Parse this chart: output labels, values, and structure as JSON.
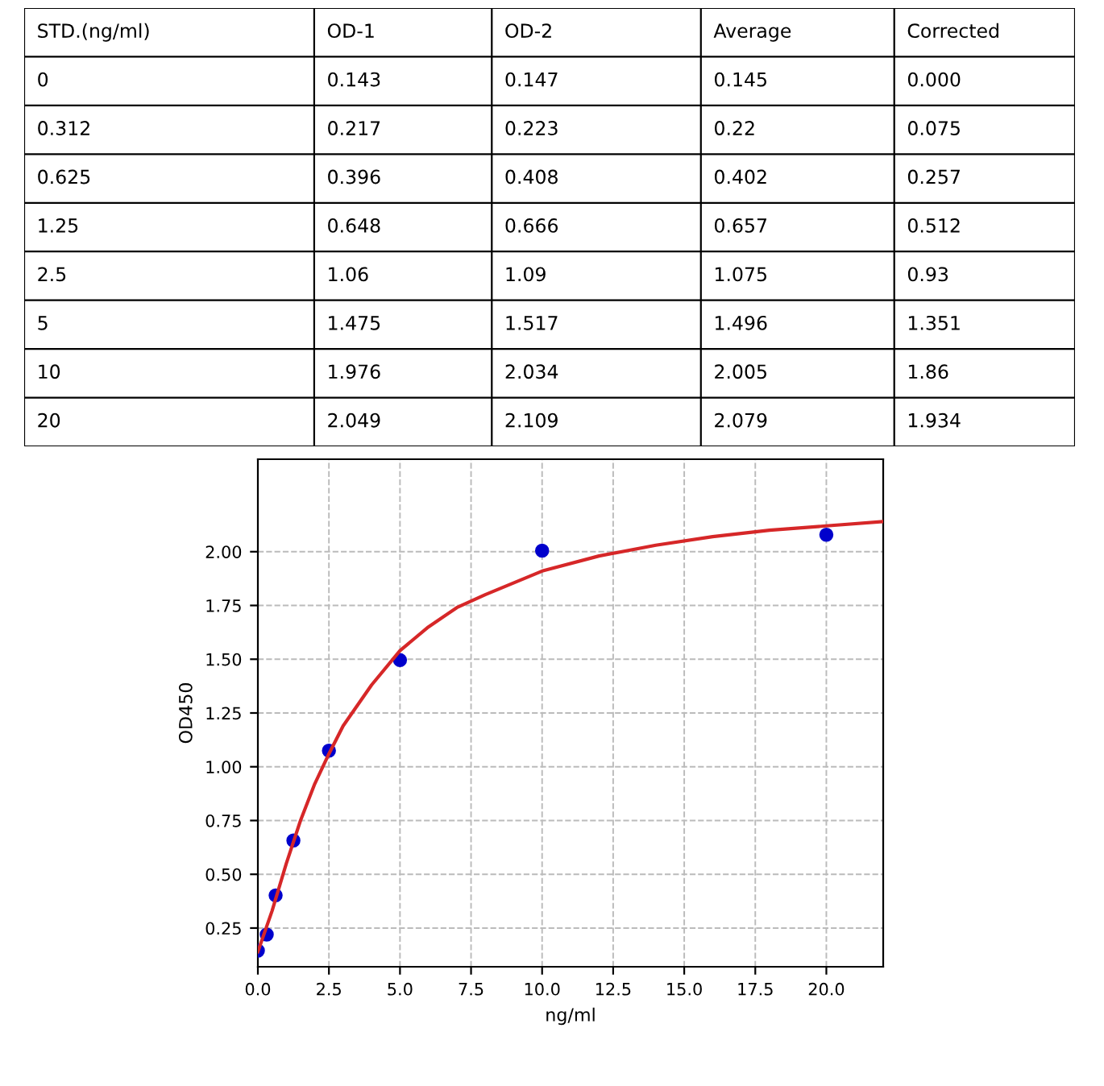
{
  "chart_data": [
    {
      "type": "other",
      "categories": [
        "STD.(ng/ml)",
        "OD-1",
        "OD-2",
        "Average",
        "Corrected"
      ],
      "cell_labels": [
        [
          "0",
          "0.143",
          "0.147",
          "0.145",
          "0.000"
        ],
        [
          "0.312",
          "0.217",
          "0.223",
          "0.22",
          "0.075"
        ],
        [
          "0.625",
          "0.396",
          "0.408",
          "0.402",
          "0.257"
        ],
        [
          "1.25",
          "0.648",
          "0.666",
          "0.657",
          "0.512"
        ],
        [
          "2.5",
          "1.06",
          "1.09",
          "1.075",
          "0.93"
        ],
        [
          "5",
          "1.475",
          "1.517",
          "1.496",
          "1.351"
        ],
        [
          "10",
          "1.976",
          "2.034",
          "2.005",
          "1.86"
        ],
        [
          "20",
          "2.049",
          "2.109",
          "2.079",
          "1.934"
        ]
      ]
    },
    {
      "type": "scatter",
      "xlabel": "ng/ml",
      "ylabel": "OD450",
      "series": [
        {
          "type": "scatter",
          "color": "#0000cc",
          "marker": "circle",
          "x": [
            0,
            0.312,
            0.625,
            1.25,
            2.5,
            5,
            10,
            20
          ],
          "values": [
            0.145,
            0.22,
            0.402,
            0.657,
            1.075,
            1.496,
            2.005,
            2.079
          ]
        },
        {
          "type": "line",
          "color": "#d62728",
          "marker": "none",
          "x": [
            0,
            0.5,
            1,
            1.5,
            2,
            2.5,
            3,
            4,
            5,
            6,
            7,
            8,
            10,
            12,
            14,
            16,
            18,
            20,
            22
          ],
          "values": [
            0.14,
            0.33,
            0.55,
            0.75,
            0.92,
            1.06,
            1.19,
            1.38,
            1.54,
            1.65,
            1.74,
            1.8,
            1.91,
            1.98,
            2.03,
            2.07,
            2.1,
            2.12,
            2.14
          ]
        }
      ],
      "xlim": [
        0,
        22
      ],
      "ylim": [
        0.07,
        2.43
      ],
      "xticks": [
        {
          "value": 0,
          "label": "0.0"
        },
        {
          "value": 2.5,
          "label": "2.5"
        },
        {
          "value": 5,
          "label": "5.0"
        },
        {
          "value": 7.5,
          "label": "7.5"
        },
        {
          "value": 10,
          "label": "10.0"
        },
        {
          "value": 12.5,
          "label": "12.5"
        },
        {
          "value": 15,
          "label": "15.0"
        },
        {
          "value": 17.5,
          "label": "17.5"
        },
        {
          "value": 20,
          "label": "20.0"
        }
      ],
      "yticks": [
        {
          "value": 0.25,
          "label": "0.25"
        },
        {
          "value": 0.5,
          "label": "0.50"
        },
        {
          "value": 0.75,
          "label": "0.75"
        },
        {
          "value": 1,
          "label": "1.00"
        },
        {
          "value": 1.25,
          "label": "1.25"
        },
        {
          "value": 1.5,
          "label": "1.50"
        },
        {
          "value": 1.75,
          "label": "1.75"
        },
        {
          "value": 2,
          "label": "2.00"
        }
      ],
      "grid": true
    }
  ]
}
